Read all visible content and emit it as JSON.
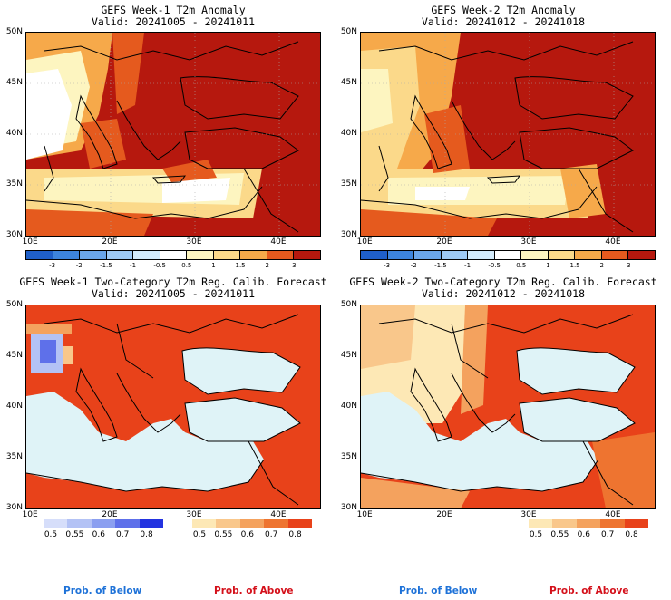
{
  "panels": [
    {
      "id": "p1",
      "title": "GEFS Week-1 T2m Anomaly",
      "valid": "Valid: 20241005 - 20241011"
    },
    {
      "id": "p2",
      "title": "GEFS Week-2 T2m Anomaly",
      "valid": "Valid: 20241012 - 20241018"
    },
    {
      "id": "p3",
      "title": "GEFS Week-1 Two-Category T2m Reg. Calib. Forecast",
      "valid": "Valid: 20241005 - 20241011"
    },
    {
      "id": "p4",
      "title": "GEFS Week-2 Two-Category T2m Reg. Calib. Forecast",
      "valid": "Valid: 20241012 - 20241018"
    }
  ],
  "lat_labels": [
    "50N",
    "45N",
    "40N",
    "35N",
    "30N"
  ],
  "lon_labels": [
    "10E",
    "20E",
    "30E",
    "40E"
  ],
  "anomaly_colorbar": {
    "labels": [
      "-3",
      "-2",
      "-1.5",
      "-1",
      "-0.5",
      "0.5",
      "1",
      "1.5",
      "2",
      "3"
    ],
    "colors": [
      "#1f5fc8",
      "#3d84dc",
      "#6aa6ea",
      "#9ecaf5",
      "#d3ebfb",
      "#ffffff",
      "#fdf5c0",
      "#fbd98a",
      "#f6a94a",
      "#e55a1e",
      "#b6180e"
    ]
  },
  "below_bar": {
    "labels": [
      "0.5",
      "0.55",
      "0.6",
      "0.7",
      "0.8"
    ],
    "colors": [
      "#d6defa",
      "#b3c2f5",
      "#8b9ff0",
      "#5e70ea",
      "#2333e0"
    ]
  },
  "above_bar": {
    "labels": [
      "0.5",
      "0.55",
      "0.6",
      "0.7",
      "0.8"
    ],
    "colors": [
      "#fde8b5",
      "#f9c78b",
      "#f4a25e",
      "#ee7430",
      "#e8421a"
    ]
  },
  "footer": {
    "below": "Prob. of Below",
    "above": "Prob. of Above",
    "below_color": "#1e72d8",
    "above_color": "#d4101a"
  }
}
